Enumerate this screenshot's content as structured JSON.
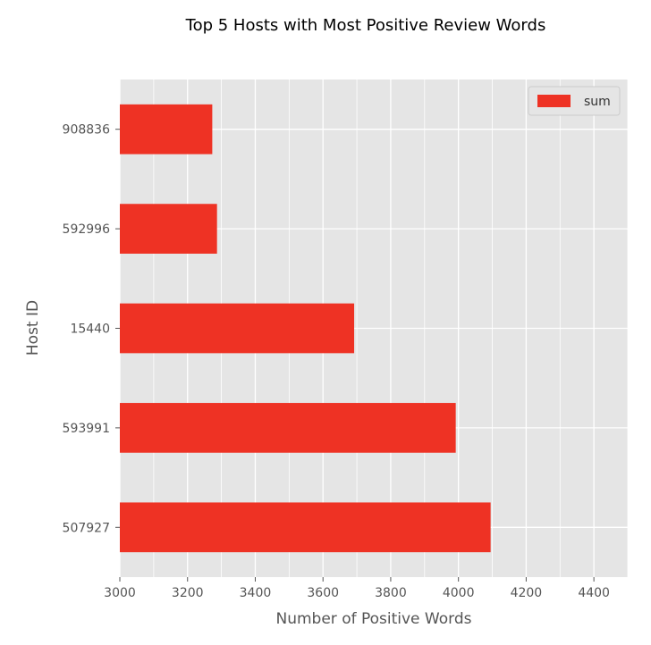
{
  "chart_data": {
    "type": "bar",
    "orientation": "horizontal",
    "title": "Top 5 Hosts with Most Positive Review Words",
    "xlabel": "Number of Positive Words",
    "ylabel": "Host ID",
    "categories": [
      "507927",
      "593991",
      "15440",
      "592996",
      "908836"
    ],
    "series": [
      {
        "name": "sum",
        "values": [
          4095,
          3992,
          3692,
          3287,
          3273
        ]
      }
    ],
    "xlim": [
      3000,
      4500
    ],
    "xticks": [
      "3000",
      "3200",
      "3400",
      "3600",
      "3800",
      "4000",
      "4200",
      "4400"
    ],
    "grid": true,
    "legend_position": "top-right",
    "colors": {
      "bar": "#ee3224",
      "plot_background": "#e5e5e5",
      "grid": "#ffffff"
    }
  }
}
